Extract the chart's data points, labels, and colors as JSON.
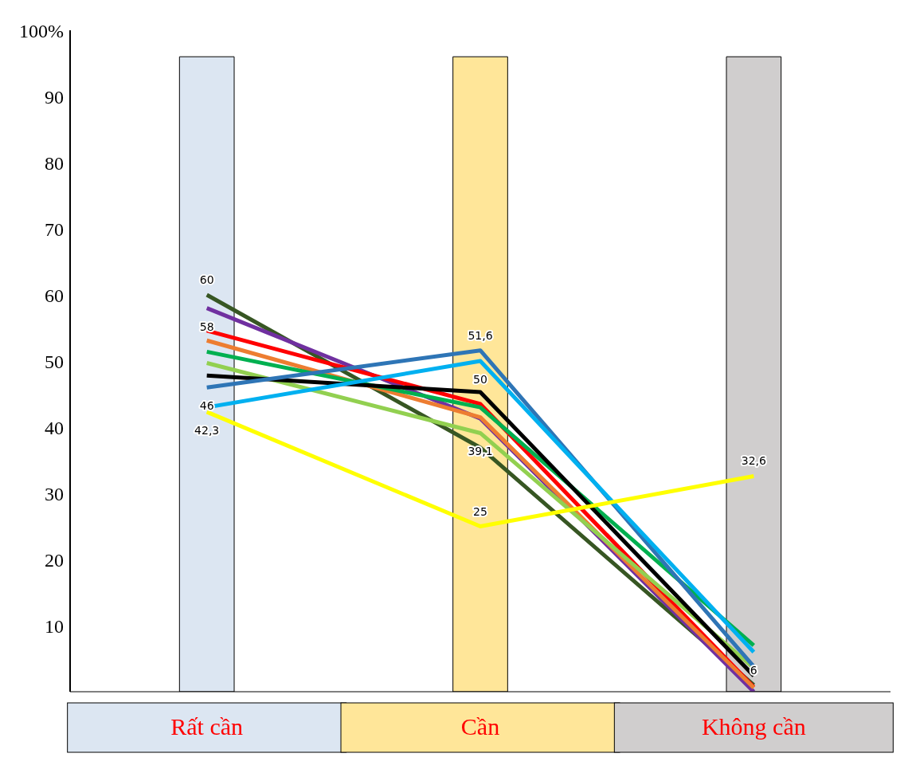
{
  "chart_data": {
    "type": "line",
    "categories": [
      "Rất cần",
      "Cần",
      "Không cần"
    ],
    "series": [
      {
        "color": "#375623",
        "values": [
          60,
          36.9,
          1
        ],
        "value_labels": [
          "60",
          null,
          null
        ]
      },
      {
        "color": "#7030a0",
        "values": [
          58,
          41.3,
          0
        ],
        "value_labels": [
          "58",
          null,
          null
        ]
      },
      {
        "color": "#ff0000",
        "values": [
          54.6,
          43.5,
          0.7
        ],
        "value_labels": [
          null,
          null,
          null
        ]
      },
      {
        "color": "#ed7d31",
        "values": [
          53.1,
          41.5,
          0.6
        ],
        "value_labels": [
          null,
          null,
          null
        ]
      },
      {
        "color": "#00b050",
        "values": [
          51.4,
          43,
          7
        ],
        "value_labels": [
          null,
          null,
          null
        ]
      },
      {
        "color": "#92d050",
        "values": [
          49.7,
          39.1,
          3.6
        ],
        "value_labels": [
          null,
          "39,1",
          null
        ]
      },
      {
        "color": "#000000",
        "values": [
          47.8,
          45.3,
          2.4
        ],
        "value_labels": [
          null,
          null,
          null
        ]
      },
      {
        "color": "#2e75b6",
        "values": [
          46,
          51.6,
          3.8
        ],
        "value_labels": [
          "46",
          "51,6",
          null
        ]
      },
      {
        "color": "#00b0f0",
        "values": [
          43,
          50,
          6
        ],
        "value_labels": [
          null,
          "50",
          "6"
        ]
      },
      {
        "color": "#ffff00",
        "values": [
          42.3,
          25,
          32.6
        ],
        "value_labels": [
          "42,3",
          "25",
          "32,6"
        ]
      }
    ],
    "ylim": [
      0,
      100
    ],
    "yticks": [
      10,
      20,
      30,
      40,
      50,
      60,
      70,
      80,
      90,
      {
        "value": 100,
        "label": "100%"
      }
    ],
    "bands": [
      {
        "axis": "x",
        "from": "Rất cần",
        "to": "Rất cần",
        "color": "#dce6f2"
      },
      {
        "axis": "x",
        "from": "Cần",
        "to": "Cần",
        "color": "#ffe699"
      },
      {
        "axis": "x",
        "from": "Không cần",
        "to": "Không cần",
        "color": "#d0cece"
      }
    ],
    "grid": false,
    "legend": false,
    "marker": "none",
    "line_style": "solid"
  }
}
